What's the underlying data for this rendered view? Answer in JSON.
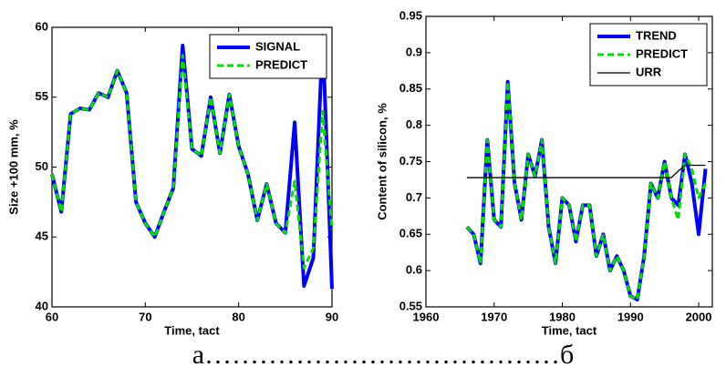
{
  "chart_data": [
    {
      "type": "line",
      "xlabel": "Time, tact",
      "ylabel": "Size +100 mm, %",
      "x": [
        60,
        61,
        62,
        63,
        64,
        65,
        66,
        67,
        68,
        69,
        70,
        71,
        72,
        73,
        74,
        75,
        76,
        77,
        78,
        79,
        80,
        81,
        82,
        83,
        84,
        85,
        86,
        87,
        88,
        89,
        90
      ],
      "xlim": [
        60,
        90
      ],
      "ylim": [
        40,
        60
      ],
      "xticks": [
        60,
        70,
        80,
        90
      ],
      "yticks": [
        40,
        45,
        50,
        55,
        60
      ],
      "grid": false,
      "legend": "upper right",
      "series": [
        {
          "name": "SIGNAL",
          "color": "#0000ff",
          "linestyle": "solid",
          "linewidth": 4,
          "values": [
            49.5,
            46.8,
            53.8,
            54.2,
            54.1,
            55.3,
            55.0,
            56.9,
            55.3,
            47.5,
            46.0,
            45.0,
            46.8,
            48.5,
            58.7,
            51.3,
            50.8,
            55.0,
            51.0,
            55.2,
            51.5,
            49.5,
            46.2,
            48.8,
            46.0,
            45.3,
            53.2,
            41.5,
            43.5,
            59.4,
            41.3
          ]
        },
        {
          "name": "PREDICT",
          "color": "#00e000",
          "linestyle": "dashed",
          "linewidth": 3,
          "values": [
            49.5,
            46.8,
            53.8,
            54.2,
            54.1,
            55.3,
            55.0,
            56.9,
            55.3,
            47.5,
            46.0,
            45.0,
            46.8,
            48.5,
            58.0,
            51.3,
            50.8,
            55.0,
            51.0,
            55.2,
            51.5,
            49.5,
            46.2,
            48.8,
            46.0,
            45.3,
            49.0,
            42.8,
            44.2,
            54.0,
            45.5
          ]
        }
      ]
    },
    {
      "type": "line",
      "xlabel": "Time, tact",
      "ylabel": "Content of silicon, %",
      "x": [
        1966,
        1967,
        1968,
        1969,
        1970,
        1971,
        1972,
        1973,
        1974,
        1975,
        1976,
        1977,
        1978,
        1979,
        1980,
        1981,
        1982,
        1983,
        1984,
        1985,
        1986,
        1987,
        1988,
        1989,
        1990,
        1991,
        1992,
        1993,
        1994,
        1995,
        1996,
        1997,
        1998,
        1999,
        2000,
        2001
      ],
      "xlim": [
        1960,
        2002
      ],
      "ylim": [
        0.55,
        0.95
      ],
      "xticks": [
        1960,
        1970,
        1980,
        1990,
        2000
      ],
      "yticks": [
        0.55,
        0.6,
        0.65,
        0.7,
        0.75,
        0.8,
        0.85,
        0.9,
        0.95
      ],
      "grid": false,
      "legend": "upper right",
      "series": [
        {
          "name": "TREND",
          "color": "#0000ff",
          "linestyle": "solid",
          "linewidth": 4,
          "values": [
            0.66,
            0.65,
            0.61,
            0.78,
            0.67,
            0.66,
            0.86,
            0.72,
            0.67,
            0.76,
            0.73,
            0.78,
            0.66,
            0.61,
            0.7,
            0.69,
            0.64,
            0.69,
            0.69,
            0.62,
            0.65,
            0.6,
            0.62,
            0.6,
            0.565,
            0.56,
            0.62,
            0.72,
            0.7,
            0.75,
            0.7,
            0.69,
            0.76,
            0.72,
            0.65,
            0.74
          ]
        },
        {
          "name": "PREDICT",
          "color": "#00e000",
          "linestyle": "dashed",
          "linewidth": 3,
          "values": [
            0.66,
            0.65,
            0.61,
            0.78,
            0.67,
            0.66,
            0.86,
            0.72,
            0.67,
            0.76,
            0.73,
            0.78,
            0.66,
            0.61,
            0.7,
            0.69,
            0.64,
            0.69,
            0.69,
            0.62,
            0.65,
            0.6,
            0.62,
            0.6,
            0.565,
            0.56,
            0.62,
            0.72,
            0.7,
            0.75,
            0.7,
            0.67,
            0.76,
            0.74,
            0.7,
            0.72
          ]
        },
        {
          "name": "URR",
          "color": "#000000",
          "linestyle": "solid",
          "linewidth": 1.3,
          "values": [
            0.728,
            0.728,
            0.728,
            0.728,
            0.728,
            0.728,
            0.728,
            0.728,
            0.728,
            0.728,
            0.728,
            0.728,
            0.728,
            0.728,
            0.728,
            0.728,
            0.728,
            0.728,
            0.728,
            0.728,
            0.728,
            0.728,
            0.728,
            0.728,
            0.728,
            0.728,
            0.728,
            0.728,
            0.728,
            0.728,
            0.728,
            0.737,
            0.745,
            0.745,
            0.745,
            0.745
          ]
        }
      ]
    }
  ],
  "caption": "а…………………………………б"
}
